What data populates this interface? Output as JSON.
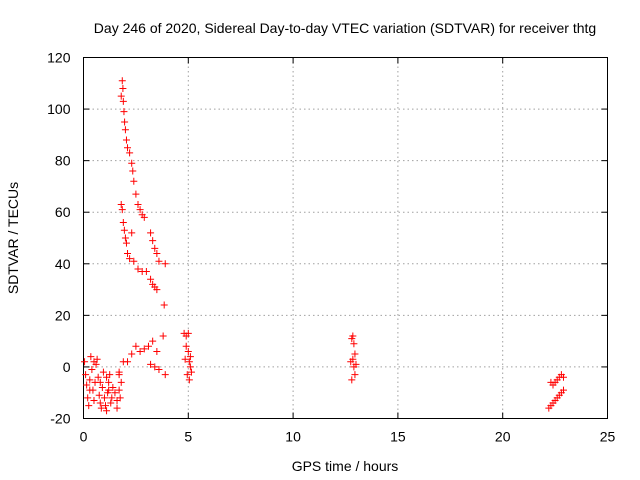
{
  "chart_data": {
    "type": "scatter",
    "title": "Day 246 of 2020, Sidereal Day-to-day VTEC variation (SDTVAR) for receiver thtg",
    "xlabel": "GPS time / hours",
    "ylabel": "SDTVAR / TECUs",
    "xlim": [
      0,
      25
    ],
    "ylim": [
      -20,
      120
    ],
    "xticks": [
      0,
      5,
      10,
      15,
      20,
      25
    ],
    "yticks": [
      -20,
      0,
      20,
      40,
      60,
      80,
      100,
      120
    ],
    "grid": true,
    "marker": "+",
    "color": "#ff0000",
    "series": [
      {
        "name": "SDTVAR",
        "points": [
          [
            0.05,
            2
          ],
          [
            0.1,
            -3
          ],
          [
            0.15,
            -7
          ],
          [
            0.2,
            -12
          ],
          [
            0.25,
            -15
          ],
          [
            0.3,
            -5
          ],
          [
            0.35,
            4
          ],
          [
            0.4,
            -1
          ],
          [
            0.45,
            -9
          ],
          [
            0.5,
            -13
          ],
          [
            0.55,
            -6
          ],
          [
            0.6,
            1
          ],
          [
            0.65,
            3
          ],
          [
            0.7,
            -4
          ],
          [
            0.75,
            -11
          ],
          [
            0.8,
            -14
          ],
          [
            0.85,
            -16
          ],
          [
            0.9,
            -8
          ],
          [
            0.95,
            -2
          ],
          [
            1.0,
            -12
          ],
          [
            1.05,
            -15
          ],
          [
            1.1,
            -17
          ],
          [
            1.15,
            -10
          ],
          [
            1.2,
            -6
          ],
          [
            1.25,
            -3
          ],
          [
            1.3,
            -14
          ],
          [
            1.35,
            -12
          ],
          [
            1.4,
            -8
          ],
          [
            1.5,
            -10
          ],
          [
            1.6,
            -13
          ],
          [
            1.7,
            -2
          ],
          [
            1.75,
            -12
          ],
          [
            1.8,
            -6
          ],
          [
            1.1,
            -4
          ],
          [
            1.2,
            -9
          ],
          [
            0.3,
            -9
          ],
          [
            0.5,
            2
          ],
          [
            0.8,
            -6
          ],
          [
            1.6,
            -16
          ],
          [
            1.7,
            -9
          ],
          [
            1.8,
            105
          ],
          [
            1.85,
            111
          ],
          [
            1.88,
            108
          ],
          [
            1.9,
            103
          ],
          [
            1.93,
            99
          ],
          [
            1.96,
            95
          ],
          [
            2.0,
            92
          ],
          [
            2.05,
            88
          ],
          [
            2.1,
            85
          ],
          [
            2.2,
            83
          ],
          [
            2.3,
            79
          ],
          [
            2.35,
            76
          ],
          [
            2.4,
            72
          ],
          [
            2.5,
            67
          ],
          [
            2.6,
            63
          ],
          [
            2.7,
            61
          ],
          [
            2.8,
            59
          ],
          [
            2.9,
            58
          ],
          [
            1.8,
            63
          ],
          [
            1.85,
            61
          ],
          [
            1.9,
            56
          ],
          [
            1.95,
            53
          ],
          [
            2.0,
            50
          ],
          [
            2.05,
            48
          ],
          [
            2.1,
            44
          ],
          [
            2.2,
            42
          ],
          [
            2.3,
            52
          ],
          [
            2.4,
            41
          ],
          [
            2.6,
            38
          ],
          [
            2.8,
            37
          ],
          [
            3.0,
            37
          ],
          [
            3.2,
            52
          ],
          [
            3.3,
            49
          ],
          [
            3.4,
            46
          ],
          [
            3.5,
            44
          ],
          [
            3.6,
            41
          ],
          [
            3.9,
            40
          ],
          [
            3.2,
            34
          ],
          [
            3.3,
            32
          ],
          [
            3.4,
            31
          ],
          [
            3.5,
            30
          ],
          [
            3.85,
            24
          ],
          [
            1.7,
            -3
          ],
          [
            1.9,
            2
          ],
          [
            2.1,
            2
          ],
          [
            2.3,
            5
          ],
          [
            2.5,
            8
          ],
          [
            2.7,
            6
          ],
          [
            2.9,
            7
          ],
          [
            3.1,
            8
          ],
          [
            3.3,
            10
          ],
          [
            3.5,
            6
          ],
          [
            3.8,
            12
          ],
          [
            3.2,
            1
          ],
          [
            3.4,
            0
          ],
          [
            3.6,
            -1
          ],
          [
            3.9,
            -3
          ],
          [
            4.8,
            13
          ],
          [
            4.9,
            12
          ],
          [
            5.0,
            13
          ],
          [
            4.9,
            8
          ],
          [
            5.0,
            6
          ],
          [
            5.1,
            4
          ],
          [
            5.05,
            2
          ],
          [
            5.1,
            0
          ],
          [
            4.95,
            -3
          ],
          [
            5.05,
            -5
          ],
          [
            4.85,
            3
          ],
          [
            5.15,
            -2
          ],
          [
            12.8,
            11
          ],
          [
            12.85,
            12
          ],
          [
            12.9,
            9
          ],
          [
            12.95,
            5
          ],
          [
            12.85,
            3
          ],
          [
            12.9,
            0
          ],
          [
            12.95,
            -3
          ],
          [
            12.8,
            -5
          ],
          [
            13.0,
            1
          ],
          [
            12.75,
            2
          ],
          [
            22.3,
            -6
          ],
          [
            22.4,
            -7
          ],
          [
            22.5,
            -6
          ],
          [
            22.6,
            -5
          ],
          [
            22.7,
            -4
          ],
          [
            22.8,
            -3
          ],
          [
            22.9,
            -4
          ],
          [
            22.2,
            -16
          ],
          [
            22.3,
            -15
          ],
          [
            22.4,
            -14
          ],
          [
            22.5,
            -13
          ],
          [
            22.6,
            -12
          ],
          [
            22.7,
            -11
          ],
          [
            22.8,
            -10
          ],
          [
            22.9,
            -9
          ]
        ]
      }
    ]
  }
}
